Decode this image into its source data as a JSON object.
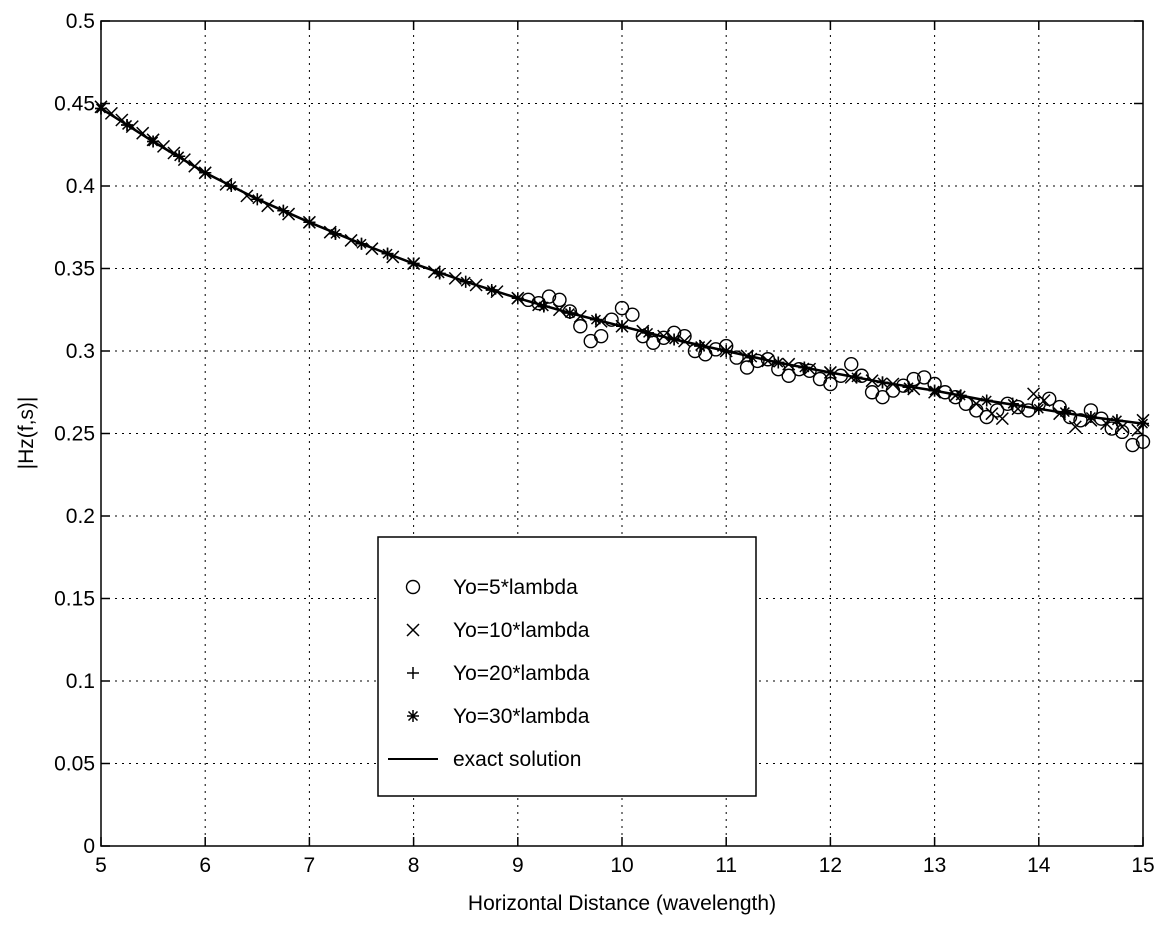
{
  "chart_data": {
    "type": "scatter",
    "title": "",
    "xlabel": "Horizontal Distance (wavelength)",
    "ylabel": "|Hz(f,s)|",
    "xlim": [
      5,
      15
    ],
    "ylim": [
      0,
      0.5
    ],
    "xticks": [
      "5",
      "6",
      "7",
      "8",
      "9",
      "10",
      "11",
      "12",
      "13",
      "14",
      "15"
    ],
    "yticks": [
      "0",
      "0.05",
      "0.1",
      "0.15",
      "0.2",
      "0.25",
      "0.3",
      "0.35",
      "0.4",
      "0.45",
      "0.5"
    ],
    "grid": true,
    "legend_position": "lower-center",
    "exact_solution": {
      "x": [
        5.0,
        5.5,
        6.0,
        6.5,
        7.0,
        7.5,
        8.0,
        8.5,
        9.0,
        9.5,
        10.0,
        10.5,
        11.0,
        11.5,
        12.0,
        12.5,
        13.0,
        13.5,
        14.0,
        14.5,
        15.0
      ],
      "y": [
        0.447,
        0.427,
        0.408,
        0.392,
        0.378,
        0.365,
        0.353,
        0.342,
        0.332,
        0.323,
        0.315,
        0.307,
        0.3,
        0.293,
        0.287,
        0.281,
        0.276,
        0.27,
        0.265,
        0.26,
        0.256
      ]
    },
    "series": [
      {
        "name": "Yo=5*lambda",
        "marker": "circle",
        "x": [
          9.1,
          9.2,
          9.3,
          9.4,
          9.5,
          9.6,
          9.7,
          9.8,
          9.9,
          10.0,
          10.1,
          10.2,
          10.3,
          10.4,
          10.5,
          10.6,
          10.7,
          10.8,
          10.9,
          11.0,
          11.1,
          11.2,
          11.3,
          11.4,
          11.5,
          11.6,
          11.7,
          11.8,
          11.9,
          12.0,
          12.1,
          12.2,
          12.3,
          12.4,
          12.5,
          12.6,
          12.7,
          12.8,
          12.9,
          13.0,
          13.1,
          13.2,
          13.3,
          13.4,
          13.5,
          13.6,
          13.7,
          13.8,
          13.9,
          14.0,
          14.1,
          14.2,
          14.3,
          14.4,
          14.5,
          14.6,
          14.7,
          14.8,
          14.9,
          15.0
        ],
        "y": [
          0.331,
          0.329,
          0.333,
          0.331,
          0.324,
          0.315,
          0.306,
          0.309,
          0.319,
          0.326,
          0.322,
          0.309,
          0.305,
          0.308,
          0.311,
          0.309,
          0.3,
          0.298,
          0.301,
          0.303,
          0.296,
          0.29,
          0.294,
          0.295,
          0.289,
          0.285,
          0.289,
          0.288,
          0.283,
          0.28,
          0.285,
          0.292,
          0.285,
          0.275,
          0.272,
          0.276,
          0.279,
          0.283,
          0.284,
          0.28,
          0.275,
          0.272,
          0.268,
          0.264,
          0.26,
          0.264,
          0.268,
          0.266,
          0.264,
          0.268,
          0.271,
          0.266,
          0.26,
          0.258,
          0.264,
          0.259,
          0.253,
          0.251,
          0.243,
          0.245
        ]
      },
      {
        "name": "Yo=10*lambda",
        "marker": "x",
        "x": [
          5.0,
          5.1,
          5.2,
          5.3,
          5.4,
          5.5,
          5.6,
          5.7,
          5.8,
          5.9,
          6.0,
          6.2,
          6.4,
          6.6,
          6.8,
          7.0,
          7.2,
          7.4,
          7.6,
          7.8,
          8.0,
          8.2,
          8.4,
          8.6,
          8.8,
          9.0,
          9.2,
          9.4,
          9.6,
          9.8,
          10.0,
          10.2,
          10.4,
          10.6,
          10.8,
          11.0,
          11.2,
          11.4,
          11.6,
          11.8,
          12.0,
          12.2,
          12.4,
          12.6,
          12.8,
          13.0,
          13.2,
          13.4,
          13.55,
          13.65,
          13.8,
          13.95,
          14.05,
          14.2,
          14.35,
          14.5,
          14.65,
          14.8,
          14.95,
          15.0
        ],
        "y": [
          0.448,
          0.444,
          0.44,
          0.436,
          0.432,
          0.428,
          0.424,
          0.42,
          0.416,
          0.412,
          0.408,
          0.401,
          0.394,
          0.388,
          0.383,
          0.378,
          0.372,
          0.367,
          0.362,
          0.357,
          0.353,
          0.348,
          0.344,
          0.34,
          0.336,
          0.332,
          0.328,
          0.325,
          0.321,
          0.318,
          0.315,
          0.312,
          0.309,
          0.306,
          0.303,
          0.3,
          0.297,
          0.294,
          0.292,
          0.289,
          0.287,
          0.284,
          0.282,
          0.28,
          0.277,
          0.275,
          0.273,
          0.268,
          0.262,
          0.259,
          0.265,
          0.274,
          0.27,
          0.262,
          0.254,
          0.258,
          0.256,
          0.254,
          0.252,
          0.258
        ]
      },
      {
        "name": "Yo=20*lambda",
        "marker": "plus",
        "x": [
          5.0,
          5.25,
          5.5,
          5.75,
          6.0,
          6.25,
          6.5,
          6.75,
          7.0,
          7.25,
          7.5,
          7.75,
          8.0,
          8.25,
          8.5,
          8.75,
          9.0,
          9.25,
          9.5,
          9.75,
          10.0,
          10.25,
          10.5,
          10.75,
          11.0,
          11.25,
          11.5,
          11.75,
          12.0,
          12.25,
          12.5,
          12.75,
          13.0,
          13.25,
          13.5,
          13.75,
          14.0,
          14.25,
          14.5,
          14.75,
          15.0
        ],
        "y": [
          0.447,
          0.437,
          0.427,
          0.418,
          0.408,
          0.4,
          0.392,
          0.385,
          0.378,
          0.371,
          0.365,
          0.359,
          0.353,
          0.347,
          0.342,
          0.337,
          0.332,
          0.327,
          0.323,
          0.319,
          0.315,
          0.311,
          0.307,
          0.303,
          0.3,
          0.296,
          0.293,
          0.29,
          0.287,
          0.284,
          0.281,
          0.278,
          0.276,
          0.273,
          0.27,
          0.268,
          0.265,
          0.263,
          0.26,
          0.258,
          0.256
        ]
      },
      {
        "name": "Yo=30*lambda",
        "marker": "star",
        "x": [
          5.0,
          5.25,
          5.5,
          5.75,
          6.0,
          6.25,
          6.5,
          6.75,
          7.0,
          7.25,
          7.5,
          7.75,
          8.0,
          8.25,
          8.5,
          8.75,
          9.0,
          9.25,
          9.5,
          9.75,
          10.0,
          10.25,
          10.5,
          10.75,
          11.0,
          11.25,
          11.5,
          11.75,
          12.0,
          12.25,
          12.5,
          12.75,
          13.0,
          13.25,
          13.5,
          13.75,
          14.0,
          14.25,
          14.5,
          14.75,
          15.0
        ],
        "y": [
          0.447,
          0.437,
          0.427,
          0.418,
          0.408,
          0.4,
          0.392,
          0.385,
          0.378,
          0.371,
          0.365,
          0.359,
          0.353,
          0.347,
          0.342,
          0.337,
          0.332,
          0.327,
          0.323,
          0.319,
          0.315,
          0.311,
          0.307,
          0.303,
          0.3,
          0.296,
          0.293,
          0.29,
          0.287,
          0.284,
          0.281,
          0.278,
          0.276,
          0.273,
          0.27,
          0.268,
          0.265,
          0.263,
          0.26,
          0.258,
          0.256
        ]
      }
    ],
    "legend": [
      {
        "label": "Yo=5*lambda",
        "marker": "circle"
      },
      {
        "label": "Yo=10*lambda",
        "marker": "x"
      },
      {
        "label": "Yo=20*lambda",
        "marker": "plus"
      },
      {
        "label": "Yo=30*lambda",
        "marker": "star"
      },
      {
        "label": "exact solution",
        "marker": "line"
      }
    ]
  }
}
